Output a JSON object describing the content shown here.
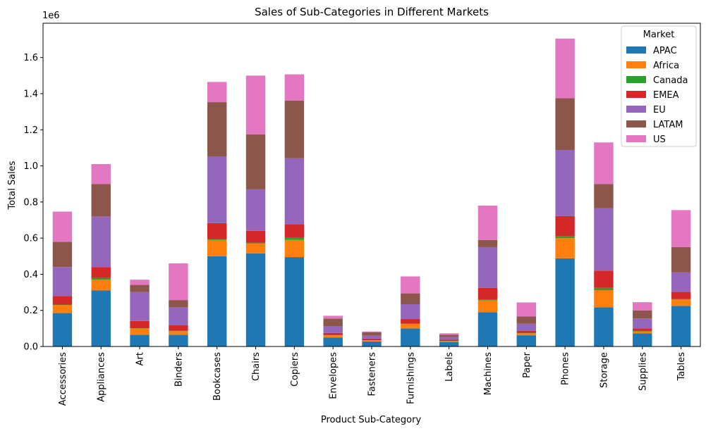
{
  "chart_data": {
    "type": "bar",
    "stacked": true,
    "title": "Sales of Sub-Categories in Different Markets",
    "xlabel": "Product Sub-Category",
    "ylabel": "Total Sales",
    "y_offset_label": "1e6",
    "ylim": [
      0,
      1.79
    ],
    "yticks": [
      0.0,
      0.2,
      0.4,
      0.6,
      0.8,
      1.0,
      1.2,
      1.4,
      1.6
    ],
    "ytick_labels": [
      "0.0",
      "0.2",
      "0.4",
      "0.6",
      "0.8",
      "1.0",
      "1.2",
      "1.4",
      "1.6"
    ],
    "grid": false,
    "legend": {
      "title": "Market",
      "placement": "top-right"
    },
    "categories": [
      "Accessories",
      "Appliances",
      "Art",
      "Binders",
      "Bookcases",
      "Chairs",
      "Copiers",
      "Envelopes",
      "Fasteners",
      "Furnishings",
      "Labels",
      "Machines",
      "Paper",
      "Phones",
      "Storage",
      "Supplies",
      "Tables"
    ],
    "series": [
      {
        "name": "APAC",
        "color": "#1f77b4",
        "values": [
          0.185,
          0.31,
          0.065,
          0.065,
          0.5,
          0.515,
          0.495,
          0.05,
          0.028,
          0.1,
          0.025,
          0.19,
          0.062,
          0.488,
          0.217,
          0.072,
          0.225
        ]
      },
      {
        "name": "Africa",
        "color": "#ff7f0e",
        "values": [
          0.045,
          0.06,
          0.035,
          0.02,
          0.09,
          0.055,
          0.095,
          0.012,
          0.006,
          0.025,
          0.005,
          0.065,
          0.012,
          0.112,
          0.095,
          0.012,
          0.035
        ]
      },
      {
        "name": "Canada",
        "color": "#2ca02c",
        "values": [
          0.002,
          0.01,
          0.001,
          0.002,
          0.003,
          0.005,
          0.012,
          0.001,
          0.001,
          0.002,
          0.001,
          0.005,
          0.002,
          0.012,
          0.013,
          0.002,
          0.002
        ]
      },
      {
        "name": "EMEA",
        "color": "#d62728",
        "values": [
          0.048,
          0.06,
          0.04,
          0.03,
          0.09,
          0.065,
          0.075,
          0.012,
          0.009,
          0.025,
          0.006,
          0.065,
          0.01,
          0.11,
          0.095,
          0.014,
          0.04
        ]
      },
      {
        "name": "EU",
        "color": "#9467bd",
        "values": [
          0.16,
          0.28,
          0.16,
          0.1,
          0.37,
          0.23,
          0.365,
          0.038,
          0.016,
          0.082,
          0.016,
          0.225,
          0.04,
          0.366,
          0.345,
          0.055,
          0.108
        ]
      },
      {
        "name": "LATAM",
        "color": "#8c564b",
        "values": [
          0.14,
          0.18,
          0.04,
          0.04,
          0.3,
          0.305,
          0.32,
          0.042,
          0.018,
          0.06,
          0.012,
          0.04,
          0.04,
          0.287,
          0.135,
          0.045,
          0.14
        ]
      },
      {
        "name": "US",
        "color": "#e377c2",
        "values": [
          0.167,
          0.11,
          0.029,
          0.203,
          0.112,
          0.325,
          0.145,
          0.015,
          0.005,
          0.094,
          0.008,
          0.19,
          0.078,
          0.33,
          0.23,
          0.045,
          0.205
        ]
      }
    ]
  }
}
